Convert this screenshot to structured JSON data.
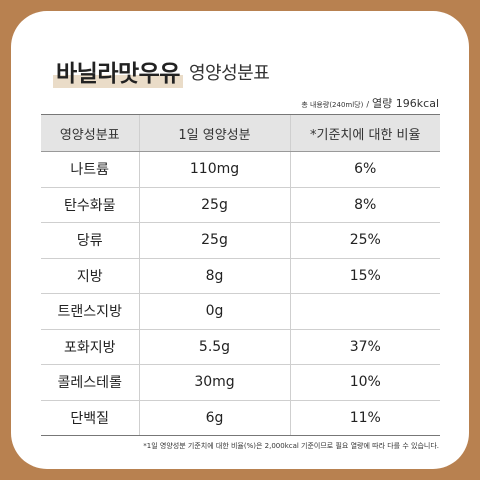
{
  "title": {
    "main": "바닐라맛우유",
    "sub": "영양성분표"
  },
  "serving": {
    "note": "총 내용량(240ml당)",
    "sep": "/",
    "calories": "열량 196kcal"
  },
  "table": {
    "headers": [
      "영양성분표",
      "1일 영양성분",
      "*기준치에 대한 비율"
    ],
    "rows": [
      {
        "name": "나트륨",
        "amount": "110mg",
        "percent": "6%"
      },
      {
        "name": "탄수화물",
        "amount": "25g",
        "percent": "8%"
      },
      {
        "name": "당류",
        "amount": "25g",
        "percent": "25%"
      },
      {
        "name": "지방",
        "amount": "8g",
        "percent": "15%"
      },
      {
        "name": "트랜스지방",
        "amount": "0g",
        "percent": ""
      },
      {
        "name": "포화지방",
        "amount": "5.5g",
        "percent": "37%"
      },
      {
        "name": "콜레스테롤",
        "amount": "30mg",
        "percent": "10%"
      },
      {
        "name": "단백질",
        "amount": "6g",
        "percent": "11%"
      }
    ]
  },
  "footnote": "*1일 영양성분 기준치에 대한 비율(%)은 2,000kcal 기준이므로 필요 열량에 따라 다를 수 있습니다.",
  "colors": {
    "frame": "#b88150",
    "highlight": "#eadcc8",
    "header_bg": "#e4e4e4"
  }
}
